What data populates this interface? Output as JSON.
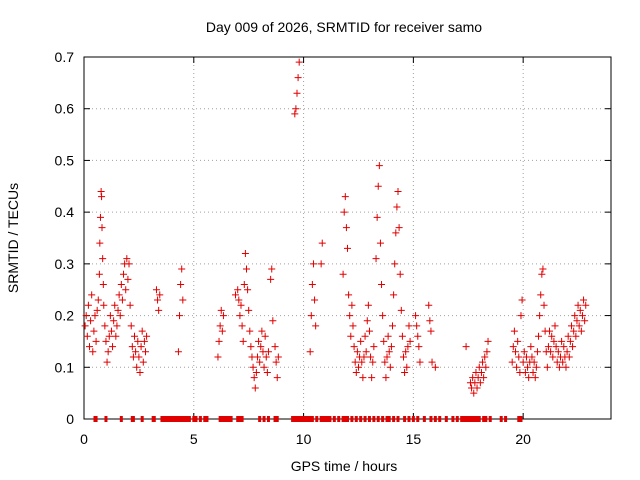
{
  "chart_data": {
    "type": "scatter",
    "title": "Day 009 of 2026, SRMTID for receiver samo",
    "xlabel": "GPS time / hours",
    "ylabel": "SRMTID / TECUs",
    "xlim": [
      0,
      24
    ],
    "ylim": [
      0,
      0.7
    ],
    "xticks": [
      "0",
      "5",
      "10",
      "15",
      "20"
    ],
    "xtick_values": [
      0,
      5,
      10,
      15,
      20
    ],
    "yticks": [
      "0",
      "0.1",
      "0.2",
      "0.3",
      "0.4",
      "0.5",
      "0.6",
      "0.7"
    ],
    "ytick_values": [
      0,
      0.1,
      0.2,
      0.3,
      0.4,
      0.5,
      0.6,
      0.7
    ],
    "grid": true,
    "marker": "+",
    "color": "#e00000",
    "series": [
      {
        "name": "SRMTID",
        "points": [
          [
            0.05,
            0.18
          ],
          [
            0.1,
            0.2
          ],
          [
            0.15,
            0.16
          ],
          [
            0.2,
            0.22
          ],
          [
            0.25,
            0.14
          ],
          [
            0.3,
            0.19
          ],
          [
            0.35,
            0.24
          ],
          [
            0.4,
            0.13
          ],
          [
            0.45,
            0.17
          ],
          [
            0.5,
            0.2
          ],
          [
            0.55,
            0.15
          ],
          [
            0.6,
            0.21
          ],
          [
            0.65,
            0.23
          ],
          [
            0.7,
            0.28
          ],
          [
            0.72,
            0.34
          ],
          [
            0.75,
            0.39
          ],
          [
            0.78,
            0.44
          ],
          [
            0.8,
            0.43
          ],
          [
            0.82,
            0.37
          ],
          [
            0.85,
            0.31
          ],
          [
            0.88,
            0.26
          ],
          [
            0.9,
            0.22
          ],
          [
            0.95,
            0.18
          ],
          [
            1.0,
            0.15
          ],
          [
            1.05,
            0.11
          ],
          [
            1.1,
            0.13
          ],
          [
            1.15,
            0.16
          ],
          [
            1.2,
            0.2
          ],
          [
            1.25,
            0.17
          ],
          [
            1.3,
            0.14
          ],
          [
            1.35,
            0.19
          ],
          [
            1.4,
            0.22
          ],
          [
            1.45,
            0.16
          ],
          [
            1.5,
            0.18
          ],
          [
            1.55,
            0.21
          ],
          [
            1.6,
            0.24
          ],
          [
            1.65,
            0.2
          ],
          [
            1.7,
            0.26
          ],
          [
            1.75,
            0.23
          ],
          [
            1.8,
            0.28
          ],
          [
            1.85,
            0.3
          ],
          [
            1.9,
            0.25
          ],
          [
            1.95,
            0.31
          ],
          [
            2.0,
            0.27
          ],
          [
            2.05,
            0.3
          ],
          [
            2.1,
            0.22
          ],
          [
            2.15,
            0.18
          ],
          [
            2.2,
            0.14
          ],
          [
            2.25,
            0.12
          ],
          [
            2.3,
            0.16
          ],
          [
            2.35,
            0.13
          ],
          [
            2.4,
            0.1
          ],
          [
            2.45,
            0.15
          ],
          [
            2.5,
            0.12
          ],
          [
            2.55,
            0.09
          ],
          [
            2.6,
            0.14
          ],
          [
            2.65,
            0.17
          ],
          [
            2.7,
            0.11
          ],
          [
            2.75,
            0.15
          ],
          [
            2.8,
            0.13
          ],
          [
            2.85,
            0.16
          ],
          [
            3.3,
            0.25
          ],
          [
            3.35,
            0.23
          ],
          [
            3.4,
            0.21
          ],
          [
            3.45,
            0.24
          ],
          [
            4.3,
            0.13
          ],
          [
            4.35,
            0.2
          ],
          [
            4.4,
            0.26
          ],
          [
            4.45,
            0.29
          ],
          [
            4.5,
            0.23
          ],
          [
            6.1,
            0.12
          ],
          [
            6.15,
            0.15
          ],
          [
            6.2,
            0.18
          ],
          [
            6.25,
            0.21
          ],
          [
            6.3,
            0.17
          ],
          [
            6.35,
            0.2
          ],
          [
            6.9,
            0.24
          ],
          [
            7.0,
            0.25
          ],
          [
            7.05,
            0.23
          ],
          [
            7.1,
            0.2
          ],
          [
            7.15,
            0.22
          ],
          [
            7.2,
            0.18
          ],
          [
            7.25,
            0.15
          ],
          [
            7.3,
            0.26
          ],
          [
            7.35,
            0.32
          ],
          [
            7.4,
            0.29
          ],
          [
            7.45,
            0.25
          ],
          [
            7.5,
            0.21
          ],
          [
            7.55,
            0.17
          ],
          [
            7.6,
            0.14
          ],
          [
            7.65,
            0.12
          ],
          [
            7.7,
            0.1
          ],
          [
            7.75,
            0.08
          ],
          [
            7.8,
            0.06
          ],
          [
            7.85,
            0.09
          ],
          [
            7.9,
            0.12
          ],
          [
            7.95,
            0.15
          ],
          [
            8.0,
            0.11
          ],
          [
            8.05,
            0.14
          ],
          [
            8.1,
            0.17
          ],
          [
            8.15,
            0.13
          ],
          [
            8.2,
            0.1
          ],
          [
            8.25,
            0.16
          ],
          [
            8.3,
            0.12
          ],
          [
            8.35,
            0.09
          ],
          [
            8.4,
            0.13
          ],
          [
            8.5,
            0.27
          ],
          [
            8.55,
            0.29
          ],
          [
            8.6,
            0.19
          ],
          [
            8.7,
            0.14
          ],
          [
            8.75,
            0.11
          ],
          [
            8.8,
            0.08
          ],
          [
            8.85,
            0.12
          ],
          [
            9.6,
            0.59
          ],
          [
            9.65,
            0.6
          ],
          [
            9.7,
            0.63
          ],
          [
            9.75,
            0.66
          ],
          [
            9.8,
            0.69
          ],
          [
            10.3,
            0.13
          ],
          [
            10.35,
            0.2
          ],
          [
            10.4,
            0.26
          ],
          [
            10.45,
            0.3
          ],
          [
            10.5,
            0.23
          ],
          [
            10.55,
            0.18
          ],
          [
            10.8,
            0.3
          ],
          [
            10.85,
            0.34
          ],
          [
            11.8,
            0.28
          ],
          [
            11.85,
            0.4
          ],
          [
            11.9,
            0.43
          ],
          [
            11.95,
            0.37
          ],
          [
            12.0,
            0.33
          ],
          [
            12.05,
            0.24
          ],
          [
            12.1,
            0.2
          ],
          [
            12.15,
            0.16
          ],
          [
            12.2,
            0.22
          ],
          [
            12.25,
            0.18
          ],
          [
            12.3,
            0.14
          ],
          [
            12.35,
            0.11
          ],
          [
            12.4,
            0.09
          ],
          [
            12.45,
            0.13
          ],
          [
            12.5,
            0.1
          ],
          [
            12.55,
            0.12
          ],
          [
            12.6,
            0.15
          ],
          [
            12.65,
            0.11
          ],
          [
            12.7,
            0.08
          ],
          [
            12.75,
            0.12
          ],
          [
            12.8,
            0.16
          ],
          [
            12.85,
            0.13
          ],
          [
            12.9,
            0.19
          ],
          [
            12.95,
            0.22
          ],
          [
            13.0,
            0.17
          ],
          [
            13.05,
            0.12
          ],
          [
            13.1,
            0.08
          ],
          [
            13.15,
            0.11
          ],
          [
            13.2,
            0.14
          ],
          [
            13.3,
            0.31
          ],
          [
            13.35,
            0.39
          ],
          [
            13.4,
            0.45
          ],
          [
            13.45,
            0.49
          ],
          [
            13.5,
            0.34
          ],
          [
            13.55,
            0.26
          ],
          [
            13.6,
            0.2
          ],
          [
            13.65,
            0.15
          ],
          [
            13.7,
            0.11
          ],
          [
            13.75,
            0.08
          ],
          [
            13.8,
            0.12
          ],
          [
            13.85,
            0.16
          ],
          [
            13.9,
            0.13
          ],
          [
            13.95,
            0.1
          ],
          [
            14.0,
            0.14
          ],
          [
            14.05,
            0.18
          ],
          [
            14.1,
            0.24
          ],
          [
            14.15,
            0.3
          ],
          [
            14.2,
            0.36
          ],
          [
            14.25,
            0.41
          ],
          [
            14.3,
            0.44
          ],
          [
            14.35,
            0.37
          ],
          [
            14.4,
            0.28
          ],
          [
            14.45,
            0.21
          ],
          [
            14.5,
            0.16
          ],
          [
            14.55,
            0.12
          ],
          [
            14.6,
            0.09
          ],
          [
            14.65,
            0.13
          ],
          [
            14.7,
            0.1
          ],
          [
            14.75,
            0.14
          ],
          [
            14.8,
            0.18
          ],
          [
            14.85,
            0.15
          ],
          [
            15.1,
            0.2
          ],
          [
            15.15,
            0.18
          ],
          [
            15.2,
            0.16
          ],
          [
            15.25,
            0.14
          ],
          [
            15.3,
            0.11
          ],
          [
            15.7,
            0.22
          ],
          [
            15.75,
            0.19
          ],
          [
            15.8,
            0.17
          ],
          [
            15.85,
            0.11
          ],
          [
            16.0,
            0.1
          ],
          [
            17.4,
            0.14
          ],
          [
            17.6,
            0.07
          ],
          [
            17.65,
            0.06
          ],
          [
            17.7,
            0.08
          ],
          [
            17.75,
            0.05
          ],
          [
            17.8,
            0.07
          ],
          [
            17.85,
            0.09
          ],
          [
            17.9,
            0.06
          ],
          [
            17.95,
            0.08
          ],
          [
            18.0,
            0.1
          ],
          [
            18.05,
            0.07
          ],
          [
            18.1,
            0.09
          ],
          [
            18.15,
            0.11
          ],
          [
            18.2,
            0.08
          ],
          [
            18.25,
            0.12
          ],
          [
            18.3,
            0.1
          ],
          [
            18.35,
            0.13
          ],
          [
            18.4,
            0.15
          ],
          [
            19.5,
            0.11
          ],
          [
            19.55,
            0.14
          ],
          [
            19.6,
            0.17
          ],
          [
            19.65,
            0.13
          ],
          [
            19.7,
            0.1
          ],
          [
            19.75,
            0.15
          ],
          [
            19.8,
            0.12
          ],
          [
            19.85,
            0.09
          ],
          [
            19.9,
            0.2
          ],
          [
            19.95,
            0.23
          ],
          [
            20.0,
            0.11
          ],
          [
            20.05,
            0.13
          ],
          [
            20.1,
            0.09
          ],
          [
            20.15,
            0.12
          ],
          [
            20.2,
            0.1
          ],
          [
            20.25,
            0.08
          ],
          [
            20.3,
            0.11
          ],
          [
            20.35,
            0.14
          ],
          [
            20.4,
            0.12
          ],
          [
            20.45,
            0.09
          ],
          [
            20.5,
            0.11
          ],
          [
            20.55,
            0.08
          ],
          [
            20.6,
            0.1
          ],
          [
            20.65,
            0.13
          ],
          [
            20.7,
            0.16
          ],
          [
            20.75,
            0.2
          ],
          [
            20.8,
            0.24
          ],
          [
            20.85,
            0.28
          ],
          [
            20.9,
            0.29
          ],
          [
            20.95,
            0.22
          ],
          [
            21.0,
            0.17
          ],
          [
            21.05,
            0.13
          ],
          [
            21.1,
            0.1
          ],
          [
            21.15,
            0.14
          ],
          [
            21.2,
            0.17
          ],
          [
            21.25,
            0.13
          ],
          [
            21.3,
            0.16
          ],
          [
            21.35,
            0.12
          ],
          [
            21.4,
            0.15
          ],
          [
            21.45,
            0.18
          ],
          [
            21.5,
            0.14
          ],
          [
            21.55,
            0.11
          ],
          [
            21.6,
            0.13
          ],
          [
            21.65,
            0.1
          ],
          [
            21.7,
            0.12
          ],
          [
            21.75,
            0.15
          ],
          [
            21.8,
            0.11
          ],
          [
            21.85,
            0.14
          ],
          [
            21.9,
            0.12
          ],
          [
            21.95,
            0.1
          ],
          [
            22.0,
            0.13
          ],
          [
            22.05,
            0.16
          ],
          [
            22.1,
            0.12
          ],
          [
            22.15,
            0.15
          ],
          [
            22.2,
            0.18
          ],
          [
            22.25,
            0.14
          ],
          [
            22.3,
            0.17
          ],
          [
            22.35,
            0.2
          ],
          [
            22.4,
            0.16
          ],
          [
            22.45,
            0.19
          ],
          [
            22.5,
            0.22
          ],
          [
            22.55,
            0.18
          ],
          [
            22.6,
            0.21
          ],
          [
            22.65,
            0.17
          ],
          [
            22.7,
            0.2
          ],
          [
            22.75,
            0.23
          ],
          [
            22.8,
            0.19
          ],
          [
            22.85,
            0.22
          ]
        ]
      }
    ],
    "zero_points_x": [
      0.5,
      0.55,
      1.0,
      1.7,
      2.2,
      2.25,
      2.65,
      3.15,
      3.2,
      3.55,
      3.6,
      3.7,
      3.8,
      3.9,
      4.0,
      4.1,
      4.2,
      4.3,
      4.4,
      4.5,
      4.6,
      4.7,
      4.8,
      5.0,
      5.1,
      5.3,
      5.5,
      5.6,
      6.2,
      6.3,
      6.4,
      6.5,
      6.6,
      6.7,
      7.0,
      7.1,
      7.2,
      8.0,
      8.2,
      8.4,
      8.7,
      8.8,
      9.5,
      9.6,
      9.7,
      9.8,
      9.9,
      10.0,
      10.1,
      10.2,
      10.3,
      10.4,
      10.6,
      10.8,
      10.9,
      11.0,
      11.1,
      11.2,
      11.4,
      11.6,
      11.8,
      11.9,
      12.0,
      12.2,
      12.4,
      12.6,
      12.8,
      13.0,
      13.2,
      13.4,
      13.6,
      13.8,
      13.9,
      14.1,
      14.3,
      14.6,
      14.8,
      15.0,
      15.2,
      15.5,
      15.8,
      16.0,
      16.2,
      16.5,
      16.8,
      17.0,
      17.2,
      17.3,
      17.4,
      17.5,
      17.6,
      17.7,
      17.8,
      17.9,
      18.0,
      18.2,
      18.3,
      18.5,
      19.0,
      19.2,
      19.8,
      19.9
    ]
  }
}
